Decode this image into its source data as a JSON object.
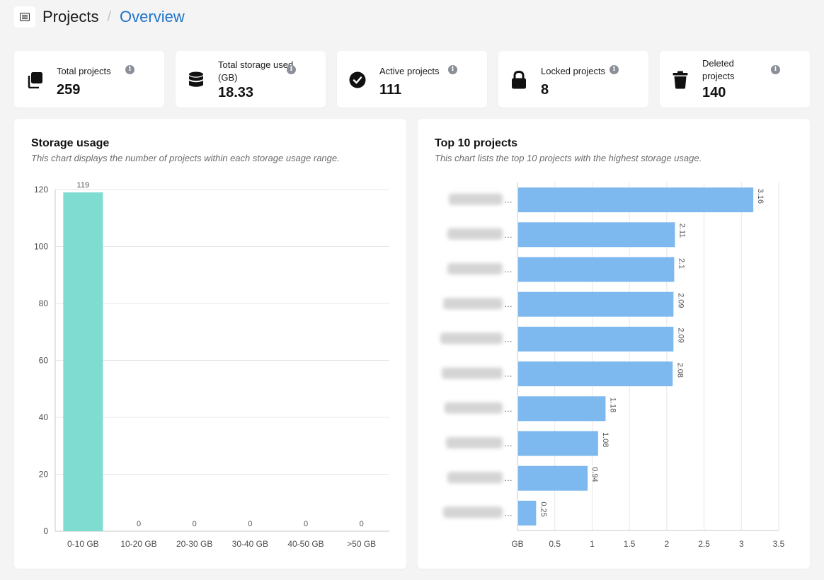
{
  "breadcrumb": {
    "root": "Projects",
    "separator": "/",
    "current": "Overview",
    "icon": "project-list-icon"
  },
  "stats": [
    {
      "label": "Total projects",
      "value": "259",
      "icon": "copy-icon"
    },
    {
      "label": "Total storage used (GB)",
      "value": "18.33",
      "icon": "database-icon"
    },
    {
      "label": "Active projects",
      "value": "111",
      "icon": "check-circle-icon"
    },
    {
      "label": "Locked projects",
      "value": "8",
      "icon": "lock-icon"
    },
    {
      "label": "Deleted projects",
      "value": "140",
      "icon": "trash-icon"
    }
  ],
  "info_glyph": "i",
  "storage_panel": {
    "title": "Storage usage",
    "subtitle": "This chart displays the number of projects within each storage usage range."
  },
  "top_panel": {
    "title": "Top 10 projects",
    "subtitle": "This chart lists the top 10 projects with the highest storage usage."
  },
  "chart_data": [
    {
      "type": "bar",
      "title": "Storage usage",
      "categories": [
        "0-10 GB",
        "10-20 GB",
        "20-30 GB",
        "30-40 GB",
        "40-50 GB",
        ">50 GB"
      ],
      "values": [
        119,
        0,
        0,
        0,
        0,
        0
      ],
      "ylim": [
        0,
        120
      ],
      "yticks": [
        0,
        20,
        40,
        60,
        80,
        100,
        120
      ],
      "grid": true,
      "color": "#7edcd1"
    },
    {
      "type": "bar",
      "orientation": "horizontal",
      "title": "Top 10 projects",
      "values": [
        3.16,
        2.11,
        2.1,
        2.09,
        2.09,
        2.08,
        1.18,
        1.08,
        0.94,
        0.25
      ],
      "value_labels": [
        "3.16",
        "2.11",
        "2.1",
        "2.09",
        "2.09",
        "2.08",
        "1.18",
        "1.08",
        "0.94",
        "0.25"
      ],
      "category_labels_obscured": true,
      "xlim": [
        0,
        3.5
      ],
      "xtick_labels": [
        "GB",
        "0.5",
        "1",
        "1.5",
        "2",
        "2.5",
        "3",
        "3.5"
      ],
      "grid": true,
      "color": "#7db8ee"
    }
  ]
}
